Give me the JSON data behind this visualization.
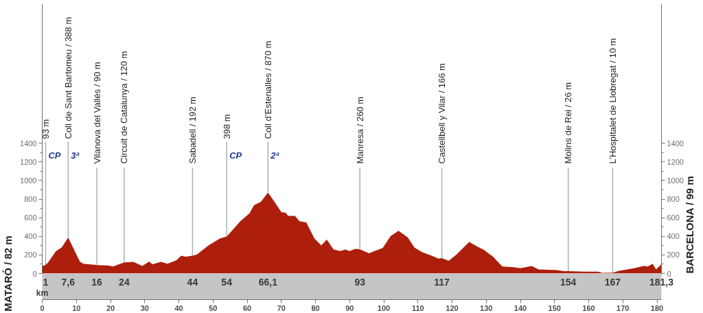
{
  "chart_data": {
    "type": "area",
    "color": "#ad1f0c",
    "x": [
      0,
      1,
      1.7,
      4,
      5.7,
      7.6,
      11,
      12,
      15.3,
      16,
      19.3,
      20.7,
      24,
      26.7,
      29.3,
      31.3,
      32.3,
      34.7,
      36.7,
      39.3,
      40.7,
      42,
      44,
      45.3,
      48.7,
      52,
      54,
      55.3,
      58,
      60.7,
      62,
      64,
      66.1,
      68,
      70,
      71.3,
      72,
      74,
      75.3,
      77.3,
      79.7,
      81.7,
      83.3,
      85.3,
      87.3,
      88.7,
      90,
      91.7,
      93,
      95.7,
      97.3,
      99.7,
      102,
      104.3,
      107,
      109,
      111.3,
      114,
      116,
      117,
      119,
      121.3,
      125,
      127.3,
      129.3,
      132,
      134.7,
      138,
      140,
      143.3,
      145.3,
      150.7,
      152.7,
      154,
      158.7,
      162.7,
      164,
      167,
      168.7,
      171.3,
      173.3,
      176,
      177.3,
      178.7,
      179.7,
      181.3
    ],
    "values": [
      82,
      93,
      118,
      240,
      280,
      388,
      130,
      106,
      94,
      90,
      86,
      76,
      120,
      126,
      81,
      130,
      100,
      126,
      106,
      143,
      192,
      180,
      192,
      205,
      303,
      377,
      398,
      451,
      562,
      648,
      735,
      772,
      870,
      772,
      661,
      653,
      619,
      619,
      562,
      550,
      377,
      303,
      365,
      259,
      242,
      259,
      242,
      266,
      260,
      217,
      242,
      274,
      402,
      459,
      390,
      279,
      229,
      192,
      160,
      166,
      136,
      205,
      340,
      291,
      254,
      180,
      76,
      69,
      57,
      81,
      44,
      37,
      25,
      26,
      20,
      20,
      7,
      10,
      27,
      44,
      57,
      81,
      76,
      106,
      44,
      99
    ],
    "xlim": [
      0,
      181.3
    ],
    "xticks": [
      0,
      10,
      20,
      30,
      40,
      50,
      60,
      70,
      80,
      90,
      100,
      110,
      120,
      130,
      140,
      150,
      160,
      170,
      180
    ],
    "x2lim": [
      0,
      181.3
    ],
    "x2label": "km",
    "x2ticks": [
      1,
      {
        "value": 7.6,
        "label": "7,6"
      },
      16,
      24,
      44,
      54,
      {
        "value": 66.1,
        "label": "66,1"
      },
      93,
      117,
      154,
      167,
      {
        "value": 181.3,
        "label": "181,3"
      }
    ],
    "ylim": [
      0,
      2900
    ],
    "yticks": [
      0,
      200,
      400,
      600,
      800,
      1000,
      1200,
      1400
    ],
    "y2lim": [
      0,
      2900
    ],
    "y2ticks": [
      0,
      200,
      400,
      600,
      800,
      1000,
      1200,
      1400
    ],
    "ylabel": "MATARÓ / 82 m",
    "y2label": "BARCELONA / 99 m",
    "annotations": [
      {
        "text": "93 m",
        "x": 1,
        "y": 93
      },
      "CP",
      {
        "text": "Coll de Sant Bartomeu / 388 m",
        "x": 7.6,
        "y": 388
      },
      "3ª",
      {
        "text": "Vilanova del Vallés / 90 m",
        "x": 16,
        "y": 90
      },
      {
        "text": "Circuit de Catalunya / 120 m",
        "x": 24,
        "y": 120
      },
      {
        "text": "Sabadell / 192 m",
        "x": 44,
        "y": 192
      },
      {
        "text": "398 m",
        "x": 54,
        "y": 398
      },
      "CP",
      {
        "text": "Coll d’Estenalles / 870 m",
        "x": 66.1,
        "y": 870
      },
      "2ª",
      {
        "text": "Manresa / 260 m",
        "x": 93,
        "y": 260
      },
      {
        "text": "Castellbell y Vilar / 166 m",
        "x": 117,
        "y": 166
      },
      {
        "text": "Molins de Rei / 26 m",
        "x": 154,
        "y": 26
      },
      {
        "text": "L’Hospitalet de Llobregat / 10 m",
        "x": 167,
        "y": 10
      }
    ]
  }
}
